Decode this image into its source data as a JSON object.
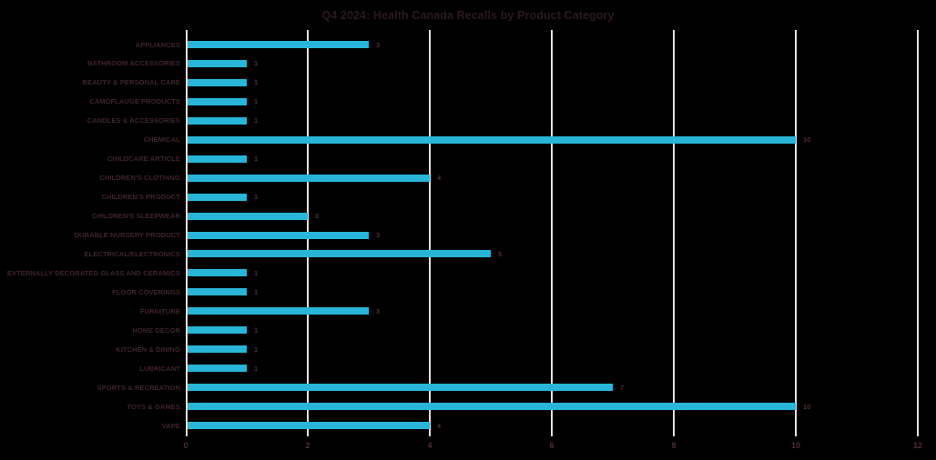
{
  "colors": {
    "background": "#000000",
    "bar": "#29b5d8",
    "gridline": "#eadfe0",
    "title_text": "#2d181b",
    "category_label_text": "#402429",
    "value_label_text": "#4e2e36",
    "tick_label_text": "#4d2e38"
  },
  "chart_data": {
    "type": "bar",
    "orientation": "horizontal",
    "title": "Q4 2024: Health Canada Recalls by Product Category",
    "categories": [
      "APPLIANCES",
      "BATHROOM ACCESSORIES",
      "BEAUTY & PERSONAL CARE",
      "CAMOFLAUGE PRODUCTS",
      "CANDLES & ACCESSORIES",
      "CHEMICAL",
      "CHILDCARE ARTICLE",
      "CHILDREN'S CLOTHING",
      "CHILDREN'S PRODUCT",
      "CHILDREN'S SLEEPWEAR",
      "DURABLE NURSERY PRODUCT",
      "ELECTRICAL/ELECTRONICS",
      "EXTERNALLY DECORATED GLASS AND CERAMICS",
      "FLOOR COVERINGS",
      "FURNITURE",
      "HOME DÉCOR",
      "KITCHEN & DINING",
      "LUBRICANT",
      "SPORTS & RECREATION",
      "TOYS & GAMES",
      "VAPE"
    ],
    "values": [
      3,
      1,
      1,
      1,
      1,
      10,
      1,
      4,
      1,
      2,
      3,
      5,
      1,
      1,
      3,
      1,
      1,
      1,
      7,
      10,
      4
    ],
    "data_labels_shown": true,
    "xlabel": "",
    "ylabel": "",
    "xlim": [
      0,
      12
    ],
    "xticks": [
      0,
      2,
      4,
      6,
      8,
      10,
      12
    ],
    "grid": "vertical",
    "legend": false
  }
}
